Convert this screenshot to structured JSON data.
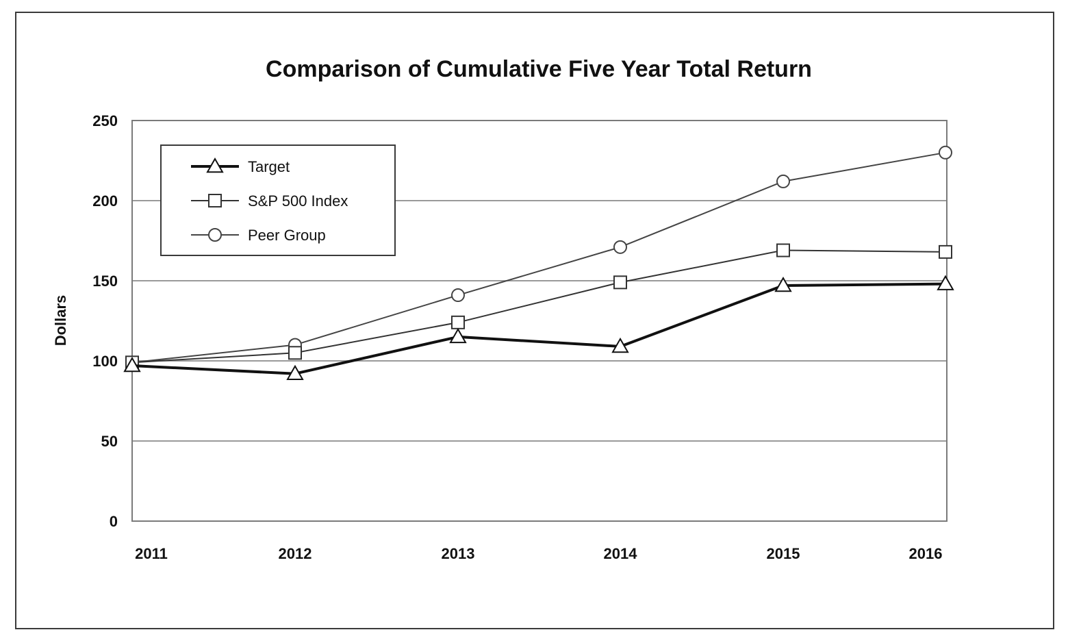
{
  "chart_data": {
    "type": "line",
    "title": "Comparison of Cumulative Five Year Total Return",
    "xlabel": "",
    "ylabel": "Dollars",
    "categories": [
      "2011",
      "2012",
      "2013",
      "2014",
      "2015",
      "2016"
    ],
    "yticks": [
      "0",
      "50",
      "100",
      "150",
      "200",
      "250"
    ],
    "ylim": [
      0,
      250
    ],
    "grid": true,
    "legend_position": "top-left",
    "series": [
      {
        "name": "Target",
        "marker": "triangle",
        "color": "#111111",
        "values": [
          97,
          92,
          115,
          109,
          147,
          148
        ]
      },
      {
        "name": "S&P 500 Index",
        "marker": "square",
        "color": "#333333",
        "values": [
          99,
          105,
          124,
          149,
          169,
          168
        ]
      },
      {
        "name": "Peer Group",
        "marker": "circle",
        "color": "#444444",
        "values": [
          99,
          110,
          141,
          171,
          212,
          230
        ]
      }
    ]
  }
}
